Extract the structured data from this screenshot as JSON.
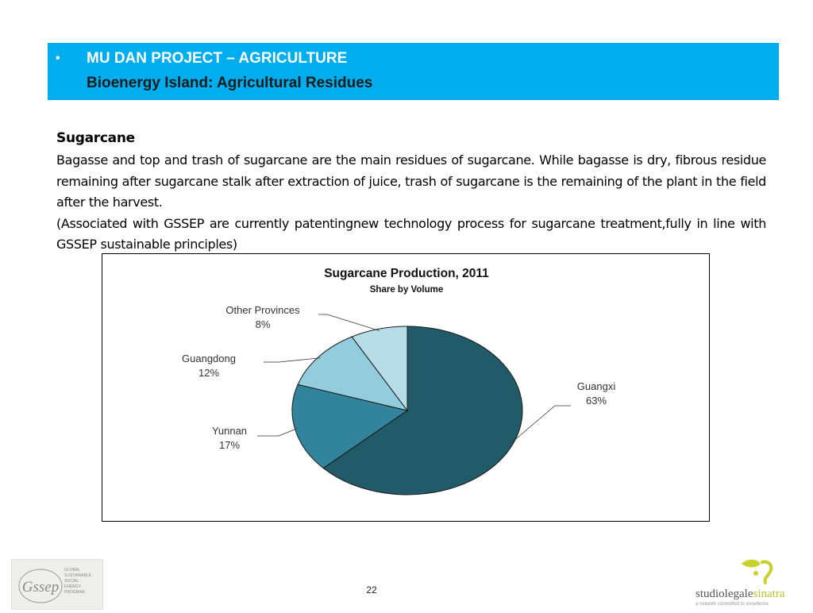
{
  "header": {
    "bullet": "•",
    "title": "MU DAN PROJECT – AGRICULTURE",
    "subtitle": "Bioenergy Island: Agricultural Residues"
  },
  "content": {
    "heading": "Sugarcane",
    "paragraph1": "Bagasse and top and trash of sugarcane are the main residues of sugarcane. While bagasse is dry, fibrous residue remaining after sugarcane stalk after extraction of juice, trash of sugarcane is the remaining of the plant in the field after the harvest.",
    "paragraph2": "(Associated with GSSEP are currently patentingnew technology process for sugarcane treatment,fully in line with GSSEP sustainable principles)"
  },
  "chart_data": {
    "type": "pie",
    "title": "Sugarcane Production, 2011",
    "subtitle": "Share by Volume",
    "slices": [
      {
        "label": "Guangxi",
        "value": 63,
        "value_label": "63%",
        "color": "#215a68"
      },
      {
        "label": "Yunnan",
        "value": 17,
        "value_label": "17%",
        "color": "#31849b"
      },
      {
        "label": "Guangdong",
        "value": 12,
        "value_label": "12%",
        "color": "#93cddd"
      },
      {
        "label": "Other Provinces",
        "value": 8,
        "value_label": "8%",
        "color": "#b7dee8"
      }
    ]
  },
  "footer": {
    "page_number": "22",
    "left_logo": {
      "mark": "Gssep",
      "lines": [
        "GLOBAL",
        "SUSTAINABLE",
        "SOCIAL",
        "ENERGY",
        "PROGRAM"
      ]
    },
    "right_logo": {
      "name_main": "studiolegale",
      "name_accent": "sinatra",
      "tagline": "a network committed to excellence"
    }
  }
}
